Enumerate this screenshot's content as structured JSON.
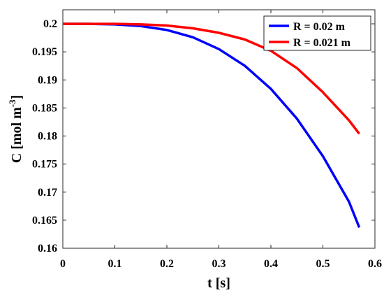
{
  "chart_data": {
    "type": "line",
    "title": "",
    "xlabel": "t [s]",
    "ylabel_main": "C [mol m",
    "ylabel_sup": "-3",
    "ylabel_close": "]",
    "xlim": [
      0,
      0.6
    ],
    "ylim": [
      0.16,
      0.2025
    ],
    "xticks": [
      0,
      0.1,
      0.2,
      0.3,
      0.4,
      0.5,
      0.6
    ],
    "xtick_labels": [
      "0",
      "0.1",
      "0.2",
      "0.3",
      "0.4",
      "0.5",
      "0.6"
    ],
    "yticks": [
      0.16,
      0.165,
      0.17,
      0.175,
      0.18,
      0.185,
      0.19,
      0.195,
      0.2
    ],
    "ytick_labels": [
      "0.16",
      "0.165",
      "0.17",
      "0.175",
      "0.18",
      "0.185",
      "0.19",
      "0.195",
      "0.2"
    ],
    "grid": false,
    "legend_position": "top-right",
    "series": [
      {
        "name": "R = 0.02 m",
        "color": "#0000ff",
        "x": [
          0,
          0.05,
          0.1,
          0.15,
          0.2,
          0.25,
          0.3,
          0.35,
          0.4,
          0.45,
          0.5,
          0.55,
          0.57
        ],
        "y": [
          0.2,
          0.2,
          0.1999,
          0.1996,
          0.1989,
          0.1976,
          0.1955,
          0.1925,
          0.1884,
          0.1831,
          0.1764,
          0.1683,
          0.1637
        ]
      },
      {
        "name": "R = 0.021 m",
        "color": "#ff0000",
        "x": [
          0,
          0.05,
          0.1,
          0.15,
          0.2,
          0.25,
          0.3,
          0.35,
          0.4,
          0.45,
          0.5,
          0.55,
          0.57
        ],
        "y": [
          0.2,
          0.2,
          0.2,
          0.1999,
          0.1997,
          0.1992,
          0.1984,
          0.1972,
          0.1952,
          0.1921,
          0.1878,
          0.1828,
          0.1804
        ]
      }
    ]
  }
}
